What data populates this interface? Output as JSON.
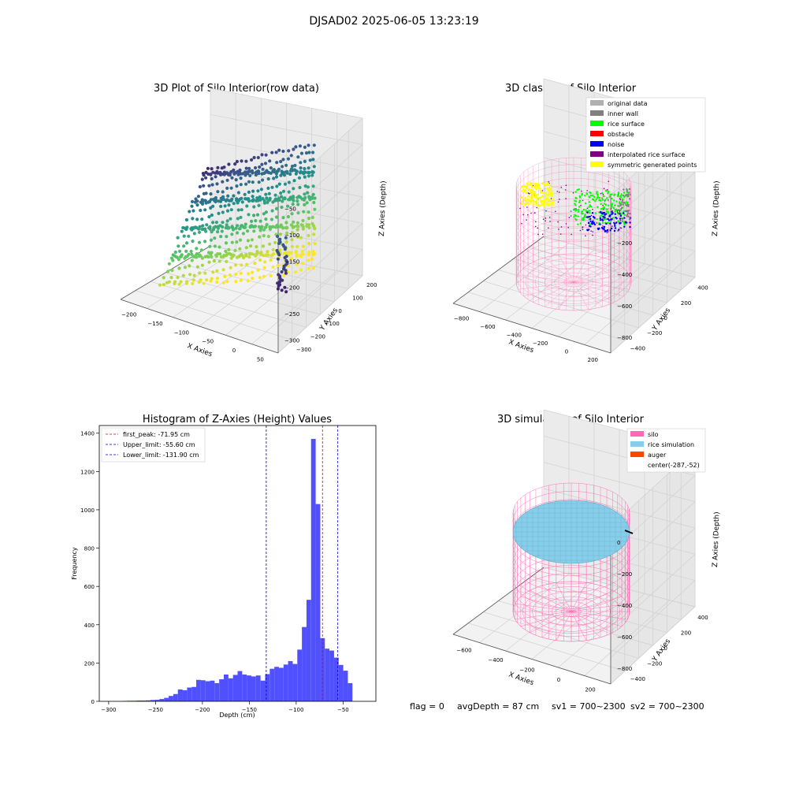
{
  "suptitle": "DJSAD02 2025-06-05 13:23:19",
  "status_line": {
    "flag": "flag = 0",
    "avg_depth": "avgDepth = 87 cm",
    "sv1": "sv1 = 700~2300",
    "sv2": "sv2 = 700~2300"
  },
  "colors": {
    "hist_bar": "#5050ff",
    "first_peak_line": "#e00000",
    "limit_line": "#0000c0",
    "silo": "#ff69b4",
    "rice_simulation": "#87ceeb",
    "auger": "#ff4500",
    "rice_surface": "#00ff00",
    "noise": "#0000ff",
    "symmetric": "#ffff00",
    "inner_wall": "#808080",
    "original": "#b0b0b0",
    "interpolated": "#800080",
    "obstacle": "#ff0000"
  },
  "chart_data": [
    {
      "type": "scatter",
      "subtype": "3d",
      "title": "3D Plot of Silo Interior(row data)",
      "xlabel": "X Axies",
      "ylabel": "Y Axies",
      "zlabel": "Z Axies (Depth)",
      "x_ticks": [
        "−200",
        "−150",
        "−100",
        "−50",
        "0",
        "50"
      ],
      "y_ticks": [
        "−300",
        "−200",
        "−100",
        "0",
        "100",
        "200"
      ],
      "z_ticks": [
        "−50",
        "−100",
        "−150",
        "−200",
        "−250",
        "−300"
      ],
      "xlim": [
        -225,
        65
      ],
      "ylim": [
        -320,
        230
      ],
      "zlim": [
        -320,
        -40
      ],
      "colormap": "viridis"
    },
    {
      "type": "scatter",
      "subtype": "3d",
      "title": "3D classify of Silo Interior",
      "xlabel": "X Axies",
      "ylabel": "Y Axies",
      "zlabel": "Z Axies (Depth)",
      "x_ticks": [
        "−800",
        "−600",
        "−400",
        "−200",
        "0",
        "200"
      ],
      "y_ticks": [
        "−400",
        "−200",
        "0",
        "200",
        "400"
      ],
      "z_ticks": [
        "0",
        "−200",
        "−400",
        "−600",
        "−800"
      ],
      "legend_position": "top-right",
      "legend": [
        {
          "label": "original data",
          "color": "#b0b0b0"
        },
        {
          "label": "inner wall",
          "color": "#808080"
        },
        {
          "label": "rice surface",
          "color": "#00ff00"
        },
        {
          "label": "obstacle",
          "color": "#ff0000"
        },
        {
          "label": "noise",
          "color": "#0000ff"
        },
        {
          "label": "interpolated rice surface",
          "color": "#800080"
        },
        {
          "label": "symmetric generated points",
          "color": "#ffff00"
        }
      ]
    },
    {
      "type": "bar",
      "subtype": "histogram",
      "title": "Histogram of Z-Axies (Height) Values",
      "xlabel": "Depth (cm)",
      "ylabel": "Frequency",
      "xlim": [
        -310,
        -15
      ],
      "ylim": [
        0,
        1440
      ],
      "x_ticks": [
        -300,
        -250,
        -200,
        -150,
        -100,
        -50
      ],
      "y_ticks": [
        0,
        200,
        400,
        600,
        800,
        1000,
        1200,
        1400
      ],
      "bin_width": 4.9,
      "bin_starts": [
        -285,
        -280.1,
        -275.2,
        -270.3,
        -265.4,
        -260.5,
        -255.6,
        -250.7,
        -245.8,
        -240.9,
        -236,
        -231.1,
        -226.2,
        -221.3,
        -216.4,
        -211.5,
        -206.6,
        -201.7,
        -196.8,
        -191.9,
        -187,
        -182.1,
        -177.2,
        -172.3,
        -167.4,
        -162.5,
        -157.6,
        -152.7,
        -147.8,
        -142.9,
        -138,
        -133.1,
        -128.2,
        -123.3,
        -118.4,
        -113.5,
        -108.6,
        -103.7,
        -98.8,
        -93.9,
        -89,
        -84.1,
        -79.2,
        -74.3,
        -69.4,
        -64.5,
        -59.6,
        -54.7,
        -49.8,
        -44.9,
        -40,
        -35.1,
        -30.2,
        -25.3
      ],
      "values": [
        2,
        3,
        3,
        4,
        4,
        5,
        7,
        8,
        12,
        18,
        28,
        38,
        62,
        58,
        72,
        75,
        112,
        110,
        105,
        108,
        95,
        115,
        140,
        120,
        138,
        158,
        140,
        135,
        130,
        135,
        108,
        142,
        170,
        180,
        175,
        192,
        210,
        195,
        270,
        388,
        530,
        1370,
        1030,
        330,
        275,
        265,
        228,
        190,
        160,
        95,
        0,
        0,
        0,
        0
      ],
      "legend_position": "top-left",
      "lines": [
        {
          "label": "first_peak: -71.95 cm",
          "x": -71.95,
          "color": "#e00000"
        },
        {
          "label": "Upper_limit: -55.60 cm",
          "x": -55.6,
          "color": "#0000c0"
        },
        {
          "label": "Lower_limit: -131.90 cm",
          "x": -131.9,
          "color": "#0000c0"
        }
      ]
    },
    {
      "type": "scatter",
      "subtype": "3d-surface",
      "title": "3D simulation of Silo Interior",
      "xlabel": "X Axies",
      "ylabel": "Y Axies",
      "zlabel": "Z Axies (Depth)",
      "x_ticks": [
        "−600",
        "−400",
        "−200",
        "0",
        "200"
      ],
      "y_ticks": [
        "−400",
        "−200",
        "0",
        "200",
        "400"
      ],
      "z_ticks": [
        "0",
        "−200",
        "−400",
        "−600",
        "−800"
      ],
      "legend_position": "top-right",
      "legend": [
        {
          "label": "silo",
          "color": "#ff69b4"
        },
        {
          "label": "rice simulation",
          "color": "#87ceeb"
        },
        {
          "label": "auger",
          "color": "#ff4500"
        },
        {
          "label": "center(-287,-52)",
          "color": ""
        }
      ]
    }
  ]
}
